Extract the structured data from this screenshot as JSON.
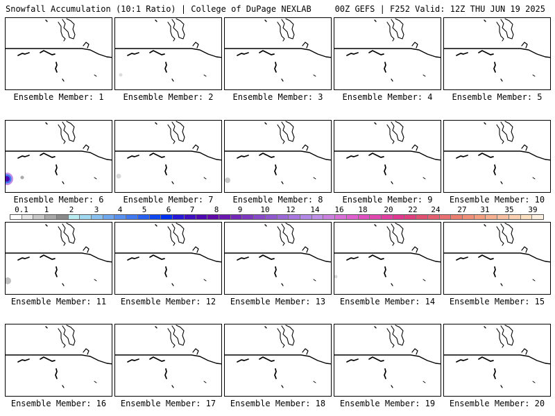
{
  "header": {
    "left": "Snowfall Accumulation (10:1 Ratio) | College of DuPage NEXLAB",
    "right": "00Z GEFS | F252 Valid: 12Z THU JUN 19 2025"
  },
  "colorbar": {
    "labels": [
      "0.1",
      "1",
      "2",
      "3",
      "4",
      "5",
      "6",
      "7",
      "8",
      "9",
      "10",
      "12",
      "14",
      "16",
      "18",
      "20",
      "22",
      "24",
      "27",
      "31",
      "35",
      "39"
    ],
    "colors": [
      "#ffffff",
      "#e6e6e6",
      "#c8c8c8",
      "#a8a8a8",
      "#8a8a8a",
      "#b8ecf0",
      "#a0d8f0",
      "#88c0f0",
      "#70a8f0",
      "#5890f0",
      "#4078f0",
      "#2860f0",
      "#1048f0",
      "#0030f0",
      "#2818d8",
      "#4010c0",
      "#5008b0",
      "#600aa8",
      "#6a18b0",
      "#7428b8",
      "#7e38c0",
      "#8848c8",
      "#9258d0",
      "#9c68d8",
      "#a878e0",
      "#b488e6",
      "#c090e8",
      "#cc80e0",
      "#d870d8",
      "#e060d0",
      "#e050c0",
      "#e048b0",
      "#e040a0",
      "#e03890",
      "#e04080",
      "#e05070",
      "#e46070",
      "#e87070",
      "#ec8070",
      "#f09078",
      "#f4a080",
      "#f6b090",
      "#f8c0a0",
      "#fad0b0",
      "#fce0c0",
      "#fef0e0"
    ]
  },
  "panels": [
    {
      "label": "Ensemble Member: 1",
      "snow": []
    },
    {
      "label": "Ensemble Member: 2",
      "snow": [
        {
          "x": 8,
          "y": 82,
          "r": 2.5,
          "color": "#dcdcdc"
        }
      ]
    },
    {
      "label": "Ensemble Member: 3",
      "snow": []
    },
    {
      "label": "Ensemble Member: 4",
      "snow": []
    },
    {
      "label": "Ensemble Member: 5",
      "snow": []
    },
    {
      "label": "Ensemble Member: 6",
      "snow": [
        {
          "x": 2,
          "y": 84,
          "r": 9,
          "color": "#c090e8"
        },
        {
          "x": 2,
          "y": 84,
          "r": 6.5,
          "color": "#4078f0"
        },
        {
          "x": 2,
          "y": 84,
          "r": 4,
          "color": "#5008b0"
        },
        {
          "x": 24,
          "y": 82,
          "r": 2.5,
          "color": "#a8a8a8"
        }
      ]
    },
    {
      "label": "Ensemble Member: 7",
      "snow": [
        {
          "x": 5,
          "y": 80,
          "r": 3.5,
          "color": "#d8d8d8"
        }
      ]
    },
    {
      "label": "Ensemble Member: 8",
      "snow": [
        {
          "x": 4,
          "y": 86,
          "r": 4,
          "color": "#c8c8c8"
        }
      ]
    },
    {
      "label": "Ensemble Member: 9",
      "snow": []
    },
    {
      "label": "Ensemble Member: 10",
      "snow": []
    },
    {
      "label": "Ensemble Member: 11",
      "snow": [
        {
          "x": 3,
          "y": 84,
          "r": 5,
          "color": "#c0c0c0"
        }
      ]
    },
    {
      "label": "Ensemble Member: 12",
      "snow": []
    },
    {
      "label": "Ensemble Member: 13",
      "snow": []
    },
    {
      "label": "Ensemble Member: 14",
      "snow": [
        {
          "x": 2,
          "y": 78,
          "r": 2.5,
          "color": "#d8d8d8"
        }
      ]
    },
    {
      "label": "Ensemble Member: 15",
      "snow": []
    },
    {
      "label": "Ensemble Member: 16",
      "snow": []
    },
    {
      "label": "Ensemble Member: 17",
      "snow": []
    },
    {
      "label": "Ensemble Member: 18",
      "snow": []
    },
    {
      "label": "Ensemble Member: 19",
      "snow": []
    },
    {
      "label": "Ensemble Member: 20",
      "snow": []
    }
  ]
}
